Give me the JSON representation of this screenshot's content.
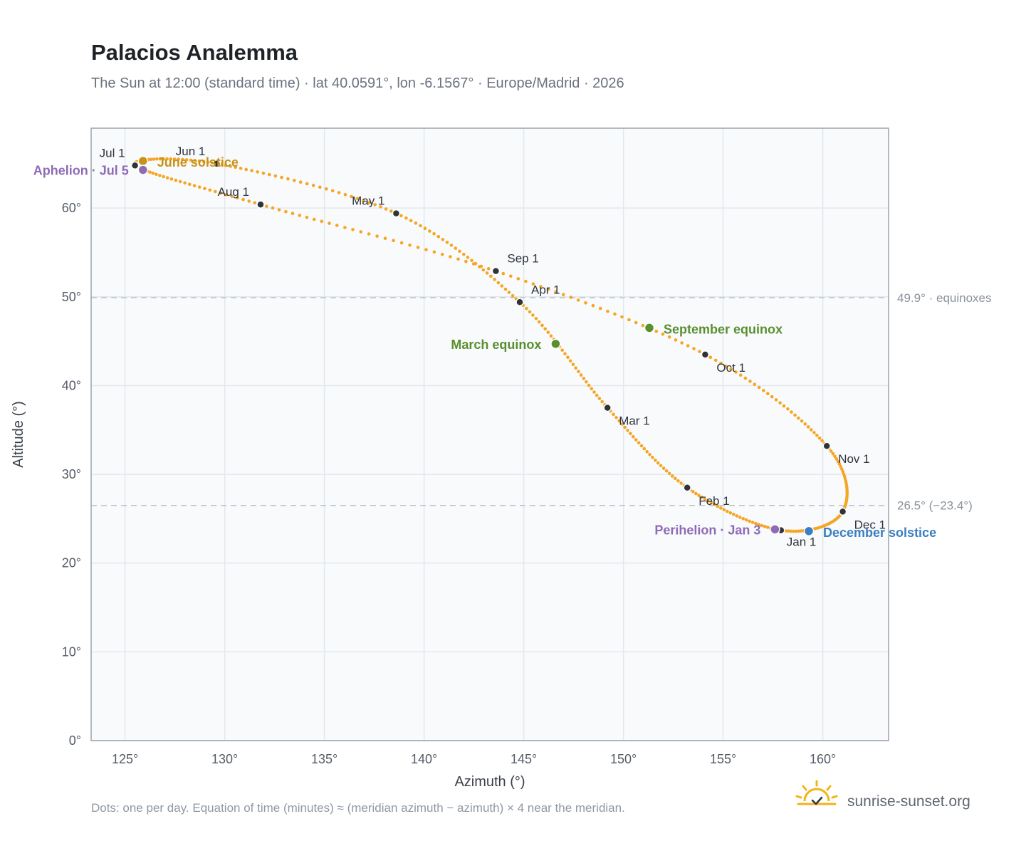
{
  "title": "Palacios Analemma",
  "subtitle": "The Sun at 12:00 (standard time) · lat 40.0591°, lon -6.1567° · Europe/Madrid · 2026",
  "footnote": "Dots: one per day. Equation of time (minutes) ≈ (meridian azimuth − azimuth) × 4 near the meridian.",
  "brand": "sunrise-sunset.org",
  "colors": {
    "curve": "#f5a623",
    "month_dot": "#2f343b",
    "solstice_june": "#c8921a",
    "solstice_december": "#3a7fc1",
    "equinox": "#5a8f2e",
    "apsis": "#8e6bb5",
    "reference_line": "#b9c2cc",
    "plot_bg": "#f8fafc",
    "grid": "#e3e8ee"
  },
  "chart_data": {
    "type": "scatter",
    "xlabel": "Azimuth (°)",
    "ylabel": "Altitude (°)",
    "xlim": [
      123.3,
      163.3
    ],
    "ylim": [
      0,
      69
    ],
    "x_ticks": [
      125,
      130,
      135,
      140,
      145,
      150,
      155,
      160
    ],
    "x_tick_labels": [
      "125°",
      "130°",
      "135°",
      "140°",
      "145°",
      "150°",
      "155°",
      "160°"
    ],
    "y_ticks": [
      0,
      10,
      20,
      30,
      40,
      50,
      60
    ],
    "y_tick_labels": [
      "0°",
      "10°",
      "20°",
      "30°",
      "40°",
      "50°",
      "60°"
    ],
    "grid": true,
    "month_points": [
      {
        "label": "Jan 1",
        "x": 157.9,
        "y": 23.7
      },
      {
        "label": "Feb 1",
        "x": 153.2,
        "y": 28.5
      },
      {
        "label": "Mar 1",
        "x": 149.2,
        "y": 37.5
      },
      {
        "label": "Apr 1",
        "x": 144.8,
        "y": 49.4
      },
      {
        "label": "May 1",
        "x": 138.6,
        "y": 59.4
      },
      {
        "label": "Jun 1",
        "x": 129.6,
        "y": 65.0
      },
      {
        "label": "Jul 1",
        "x": 125.5,
        "y": 64.8
      },
      {
        "label": "Aug 1",
        "x": 131.8,
        "y": 60.4
      },
      {
        "label": "Sep 1",
        "x": 143.6,
        "y": 52.9
      },
      {
        "label": "Oct 1",
        "x": 154.1,
        "y": 43.5
      },
      {
        "label": "Nov 1",
        "x": 160.2,
        "y": 33.2
      },
      {
        "label": "Dec 1",
        "x": 161.0,
        "y": 25.8
      }
    ],
    "events": [
      {
        "label": "June solstice",
        "x": 125.9,
        "y": 65.3,
        "kind": "solstice_june"
      },
      {
        "label": "Aphelion · Jul 5",
        "x": 125.9,
        "y": 64.3,
        "kind": "apsis"
      },
      {
        "label": "March equinox",
        "x": 146.6,
        "y": 44.7,
        "kind": "equinox"
      },
      {
        "label": "September equinox",
        "x": 151.3,
        "y": 46.5,
        "kind": "equinox"
      },
      {
        "label": "Perihelion · Jan 3",
        "x": 157.6,
        "y": 23.8,
        "kind": "apsis"
      },
      {
        "label": "December solstice",
        "x": 159.3,
        "y": 23.6,
        "kind": "solstice_december"
      }
    ],
    "reference_lines": [
      {
        "y": 49.9,
        "label": "49.9° · equinoxes"
      },
      {
        "y": 26.5,
        "label": "26.5° (−23.4°)"
      }
    ]
  }
}
